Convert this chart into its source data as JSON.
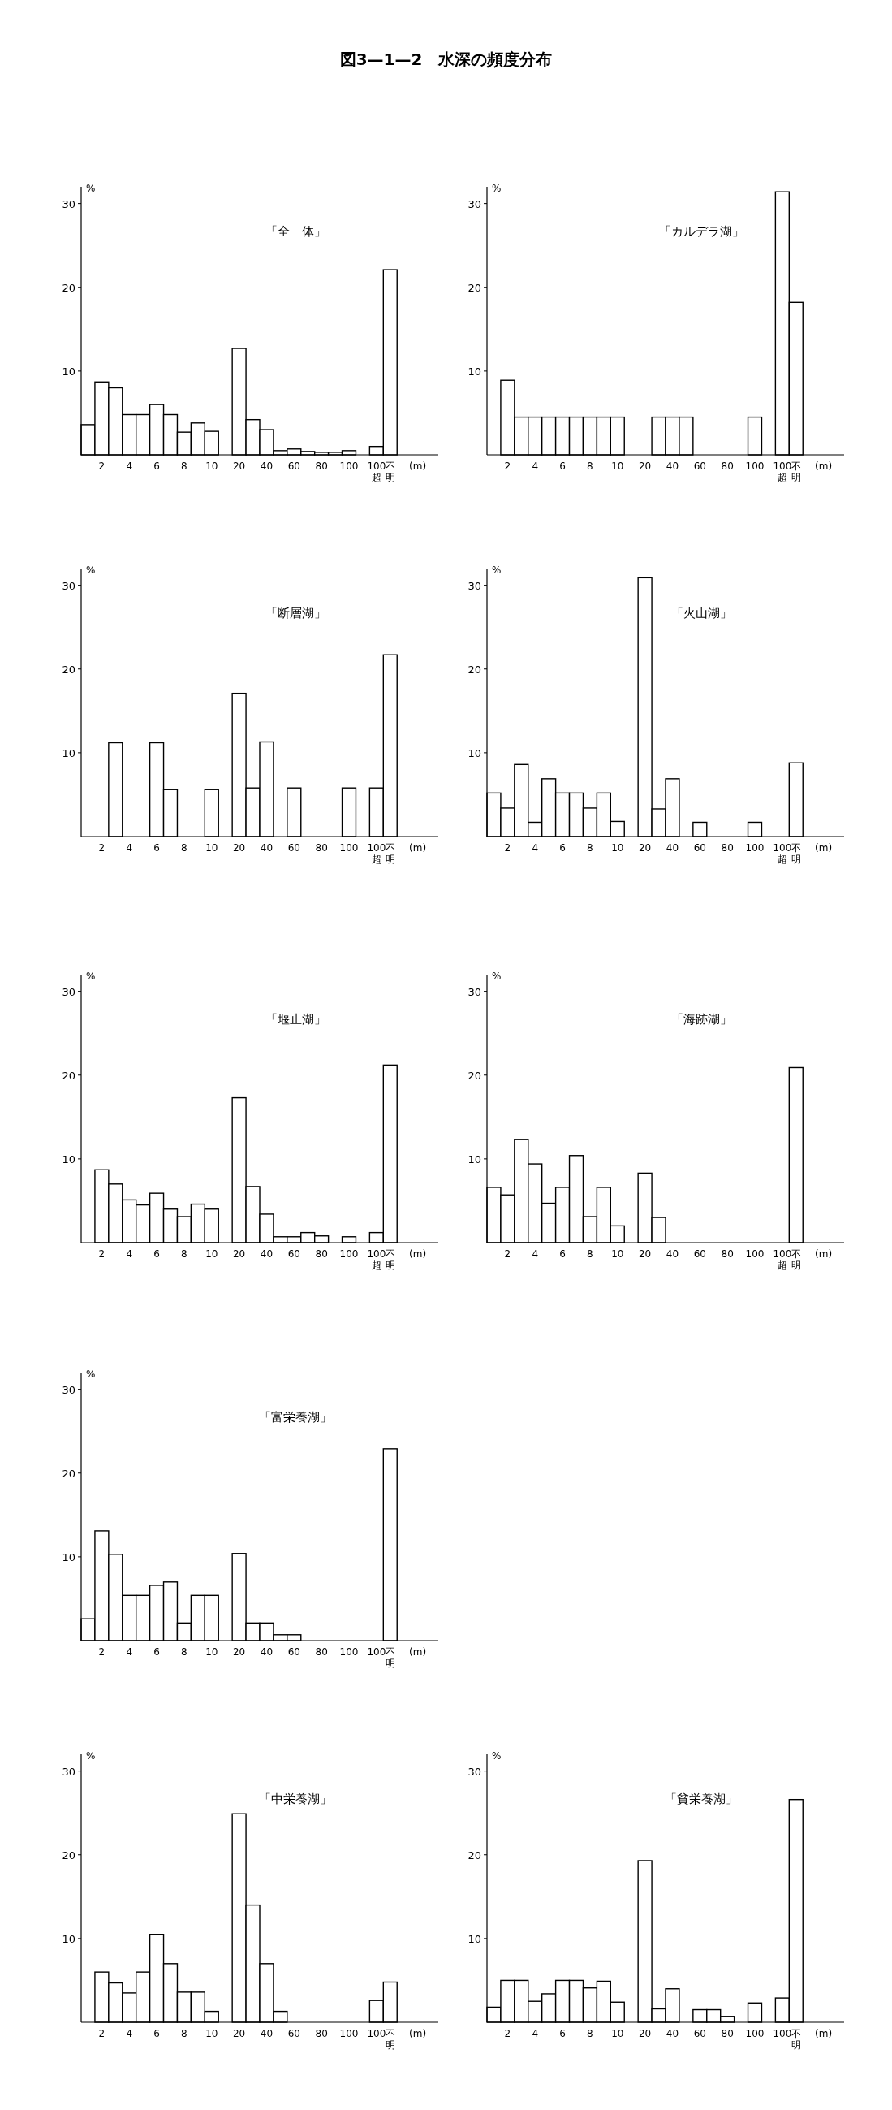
{
  "chart_data": [
    {
      "type": "bar",
      "title": "「全　体」",
      "annotations": [
        "図3—1—2　水深の頻度分布"
      ],
      "xlabel": "(m)",
      "ylabel": "%",
      "ylim": [
        0,
        32
      ],
      "yticks": [
        10,
        20,
        30
      ],
      "color": "#ffffff",
      "categories": [
        null,
        "2",
        null,
        "4",
        null,
        "6",
        null,
        "8",
        null,
        "10",
        null,
        "20",
        null,
        "40",
        null,
        "60",
        null,
        "80",
        null,
        "100",
        null,
        "100超",
        "不明"
      ],
      "values": [
        3.6,
        8.7,
        8.0,
        4.8,
        4.8,
        6.0,
        4.8,
        2.7,
        3.8,
        2.8,
        null,
        12.7,
        4.2,
        3.0,
        0.5,
        0.7,
        0.4,
        0.3,
        0.3,
        0.5,
        null,
        1.0,
        22.1
      ]
    },
    {
      "type": "bar",
      "title": "「カルデラ湖」",
      "xlabel": "(m)",
      "ylabel": "%",
      "ylim": [
        0,
        32
      ],
      "yticks": [
        10,
        20,
        30
      ],
      "color": "#ffffff",
      "categories": [
        null,
        "2",
        null,
        "4",
        null,
        "6",
        null,
        "8",
        null,
        "10",
        null,
        "20",
        null,
        "40",
        null,
        "60",
        null,
        "80",
        null,
        "100",
        null,
        "100超",
        "不明"
      ],
      "values": [
        0,
        8.9,
        4.5,
        4.5,
        4.5,
        4.5,
        4.5,
        4.5,
        4.5,
        4.5,
        null,
        0,
        4.5,
        4.5,
        4.5,
        0,
        0,
        0,
        0,
        4.5,
        null,
        31.4,
        18.2
      ]
    },
    {
      "type": "bar",
      "title": "「断層湖」",
      "xlabel": "(m)",
      "ylabel": "%",
      "ylim": [
        0,
        32
      ],
      "yticks": [
        10,
        20,
        30
      ],
      "color": "#ffffff",
      "categories": [
        null,
        "2",
        null,
        "4",
        null,
        "6",
        null,
        "8",
        null,
        "10",
        null,
        "20",
        null,
        "40",
        null,
        "60",
        null,
        "80",
        null,
        "100",
        null,
        "100超",
        "不明"
      ],
      "values": [
        0,
        0,
        11.2,
        0,
        0,
        11.2,
        5.6,
        0,
        0,
        5.6,
        null,
        17.1,
        5.8,
        11.3,
        0,
        5.8,
        0,
        0,
        0,
        5.8,
        null,
        5.8,
        21.7
      ]
    },
    {
      "type": "bar",
      "title": "「火山湖」",
      "xlabel": "(m)",
      "ylabel": "%",
      "ylim": [
        0,
        32
      ],
      "yticks": [
        10,
        20,
        30
      ],
      "color": "#ffffff",
      "categories": [
        null,
        "2",
        null,
        "4",
        null,
        "6",
        null,
        "8",
        null,
        "10",
        null,
        "20",
        null,
        "40",
        null,
        "60",
        null,
        "80",
        null,
        "100",
        null,
        "100超",
        "不明"
      ],
      "values": [
        5.2,
        3.4,
        8.6,
        1.7,
        6.9,
        5.2,
        5.2,
        3.4,
        5.2,
        1.8,
        null,
        30.9,
        3.3,
        6.9,
        0,
        1.7,
        0,
        0,
        0,
        1.7,
        null,
        0,
        8.8
      ]
    },
    {
      "type": "bar",
      "title": "「堰止湖」",
      "xlabel": "(m)",
      "ylabel": "%",
      "ylim": [
        0,
        32
      ],
      "yticks": [
        10,
        20,
        30
      ],
      "color": "#ffffff",
      "categories": [
        null,
        "2",
        null,
        "4",
        null,
        "6",
        null,
        "8",
        null,
        "10",
        null,
        "20",
        null,
        "40",
        null,
        "60",
        null,
        "80",
        null,
        "100",
        null,
        "100超",
        "不明"
      ],
      "values": [
        0,
        8.7,
        7.0,
        5.1,
        4.5,
        5.9,
        4.0,
        3.1,
        4.6,
        4.0,
        null,
        17.3,
        6.7,
        3.4,
        0.7,
        0.7,
        1.2,
        0.8,
        0,
        0.7,
        null,
        1.2,
        21.2
      ]
    },
    {
      "type": "bar",
      "title": "「海跡湖」",
      "xlabel": "(m)",
      "ylabel": "%",
      "ylim": [
        0,
        32
      ],
      "yticks": [
        10,
        20,
        30
      ],
      "color": "#ffffff",
      "categories": [
        null,
        "2",
        null,
        "4",
        null,
        "6",
        null,
        "8",
        null,
        "10",
        null,
        "20",
        null,
        "40",
        null,
        "60",
        null,
        "80",
        null,
        "100",
        null,
        "100超",
        "不明"
      ],
      "values": [
        6.6,
        5.7,
        12.3,
        9.4,
        4.7,
        6.6,
        10.4,
        3.1,
        6.6,
        2.0,
        null,
        8.3,
        3.0,
        0,
        0,
        0,
        0,
        0,
        0,
        0,
        null,
        0,
        20.9
      ]
    },
    {
      "type": "bar",
      "title": "「富栄養湖」",
      "xlabel": "(m)",
      "ylabel": "%",
      "ylim": [
        0,
        32
      ],
      "yticks": [
        10,
        20,
        30
      ],
      "color": "#ffffff",
      "categories": [
        null,
        "2",
        null,
        "4",
        null,
        "6",
        null,
        "8",
        null,
        "10",
        null,
        "20",
        null,
        "40",
        null,
        "60",
        null,
        "80",
        null,
        "100",
        null,
        "100",
        "不明"
      ],
      "values": [
        2.6,
        13.1,
        10.3,
        5.4,
        5.4,
        6.6,
        7.0,
        2.1,
        5.4,
        5.4,
        null,
        10.4,
        2.1,
        2.1,
        0.7,
        0.7,
        0,
        0,
        0,
        0,
        null,
        0,
        22.9
      ]
    },
    {
      "type": "bar",
      "title": "「中栄養湖」",
      "xlabel": "(m)",
      "ylabel": "%",
      "ylim": [
        0,
        32
      ],
      "yticks": [
        10,
        20,
        30
      ],
      "color": "#ffffff",
      "categories": [
        null,
        "2",
        null,
        "4",
        null,
        "6",
        null,
        "8",
        null,
        "10",
        null,
        "20",
        null,
        "40",
        null,
        "60",
        null,
        "80",
        null,
        "100",
        null,
        "100",
        "不明"
      ],
      "values": [
        0,
        6.0,
        4.7,
        3.5,
        6.0,
        10.5,
        7.0,
        3.6,
        3.6,
        1.3,
        null,
        24.9,
        14.0,
        7.0,
        1.3,
        0,
        0,
        0,
        0,
        0,
        null,
        2.6,
        4.8
      ]
    },
    {
      "type": "bar",
      "title": "「貧栄養湖」",
      "xlabel": "(m)",
      "ylabel": "%",
      "ylim": [
        0,
        32
      ],
      "yticks": [
        10,
        20,
        30
      ],
      "color": "#ffffff",
      "categories": [
        null,
        "2",
        null,
        "4",
        null,
        "6",
        null,
        "8",
        null,
        "10",
        null,
        "20",
        null,
        "40",
        null,
        "60",
        null,
        "80",
        null,
        "100",
        null,
        "100",
        "不明"
      ],
      "values": [
        1.8,
        5.0,
        5.0,
        2.5,
        3.4,
        5.0,
        5.0,
        4.1,
        4.9,
        2.4,
        null,
        19.3,
        1.6,
        4.0,
        0,
        1.5,
        1.5,
        0.7,
        0,
        2.3,
        null,
        2.9,
        26.6
      ]
    }
  ]
}
